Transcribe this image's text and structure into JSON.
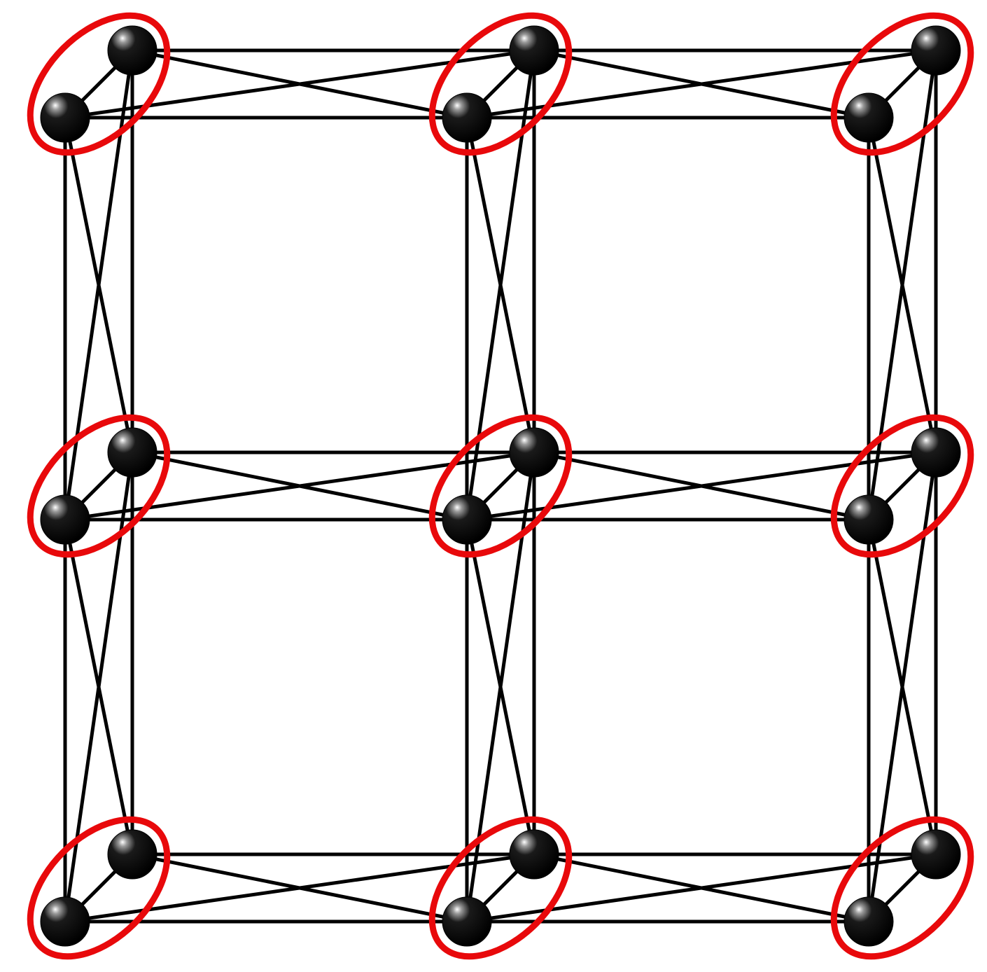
{
  "diagram": {
    "type": "lattice-graph",
    "grid_rows": 3,
    "grid_cols": 3,
    "nodes_per_site": 2,
    "site_connections": "complete-bipartite",
    "intra_site_bond": true,
    "colors": {
      "background": "#ffffff",
      "edge": "#000000",
      "node": "#000000",
      "site_ring": "#e8090b"
    }
  }
}
